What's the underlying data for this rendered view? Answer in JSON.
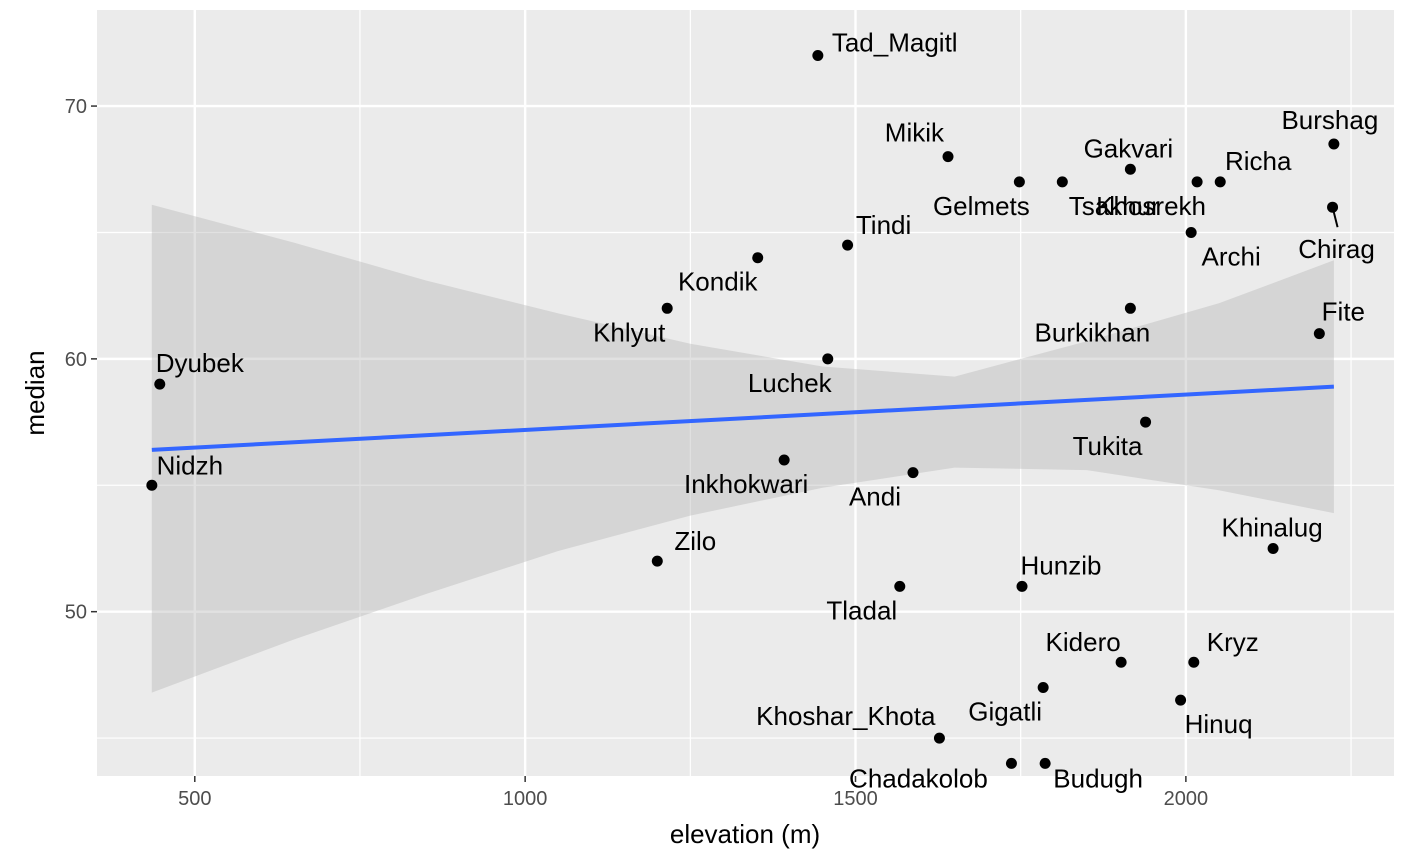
{
  "chart_data": {
    "type": "scatter",
    "title": "",
    "xlabel": "elevation (m)",
    "ylabel": "median",
    "xlim": [
      352,
      2315
    ],
    "ylim": [
      43.5,
      73.8
    ],
    "x_ticks": [
      500,
      1000,
      1500,
      2000
    ],
    "y_ticks": [
      50,
      60,
      70
    ],
    "grid": true,
    "legend": "none",
    "colors": {
      "panel_background": "#ebebeb",
      "grid": "#ffffff",
      "points": "#000000",
      "trend_line": "#3366ff",
      "confidence_band": "#b3b3b3"
    },
    "points": [
      {
        "label": "Tad_Magitl",
        "x": 1443,
        "y": 72.0
      },
      {
        "label": "Mikik",
        "x": 1640,
        "y": 68.0
      },
      {
        "label": "Gakvari",
        "x": 1916,
        "y": 67.5
      },
      {
        "label": "Burshag",
        "x": 2224,
        "y": 68.5
      },
      {
        "label": "Richa",
        "x": 2052,
        "y": 67.0
      },
      {
        "label": "Khosrekh",
        "x": 2017,
        "y": 67.0
      },
      {
        "label": "Gelmets",
        "x": 1748,
        "y": 67.0
      },
      {
        "label": "Tsakhur",
        "x": 1813,
        "y": 67.0
      },
      {
        "label": "Chirag",
        "x": 2222,
        "y": 66.0
      },
      {
        "label": "Archi",
        "x": 2008,
        "y": 65.0
      },
      {
        "label": "Tindi",
        "x": 1488,
        "y": 64.5
      },
      {
        "label": "Kondik",
        "x": 1352,
        "y": 64.0
      },
      {
        "label": "Khlyut",
        "x": 1215,
        "y": 62.0
      },
      {
        "label": "Burkikhan",
        "x": 1916,
        "y": 62.0
      },
      {
        "label": "Fite",
        "x": 2202,
        "y": 61.0
      },
      {
        "label": "Luchek",
        "x": 1458,
        "y": 60.0
      },
      {
        "label": "Dyubek",
        "x": 447,
        "y": 59.0
      },
      {
        "label": "Tukita",
        "x": 1939,
        "y": 57.5
      },
      {
        "label": "Inkhokwari",
        "x": 1392,
        "y": 56.0
      },
      {
        "label": "Andi",
        "x": 1587,
        "y": 55.5
      },
      {
        "label": "Nidzh",
        "x": 435,
        "y": 55.0
      },
      {
        "label": "Khinalug",
        "x": 2132,
        "y": 52.5
      },
      {
        "label": "Zilo",
        "x": 1200,
        "y": 52.0
      },
      {
        "label": "Tladal",
        "x": 1567,
        "y": 51.0
      },
      {
        "label": "Hunzib",
        "x": 1752,
        "y": 51.0
      },
      {
        "label": "Kidero",
        "x": 1902,
        "y": 48.0
      },
      {
        "label": "Kryz",
        "x": 2012,
        "y": 48.0
      },
      {
        "label": "Gigatli",
        "x": 1784,
        "y": 47.0
      },
      {
        "label": "Hinuq",
        "x": 1992,
        "y": 46.5
      },
      {
        "label": "Khoshar_Khota",
        "x": 1627,
        "y": 45.0
      },
      {
        "label": "Chadakolob",
        "x": 1736,
        "y": 44.0
      },
      {
        "label": "Budugh",
        "x": 1787,
        "y": 44.0
      }
    ],
    "trend_line": {
      "x": [
        435,
        2224
      ],
      "y": [
        56.4,
        58.9
      ]
    },
    "confidence_band": {
      "x": [
        435,
        650,
        850,
        1050,
        1250,
        1450,
        1650,
        1850,
        2050,
        2224
      ],
      "lower": [
        46.8,
        48.9,
        50.7,
        52.4,
        53.8,
        54.9,
        55.7,
        55.6,
        54.8,
        53.9
      ],
      "upper": [
        66.1,
        64.6,
        63.1,
        61.8,
        60.6,
        59.7,
        59.3,
        60.7,
        62.2,
        63.9
      ]
    }
  }
}
